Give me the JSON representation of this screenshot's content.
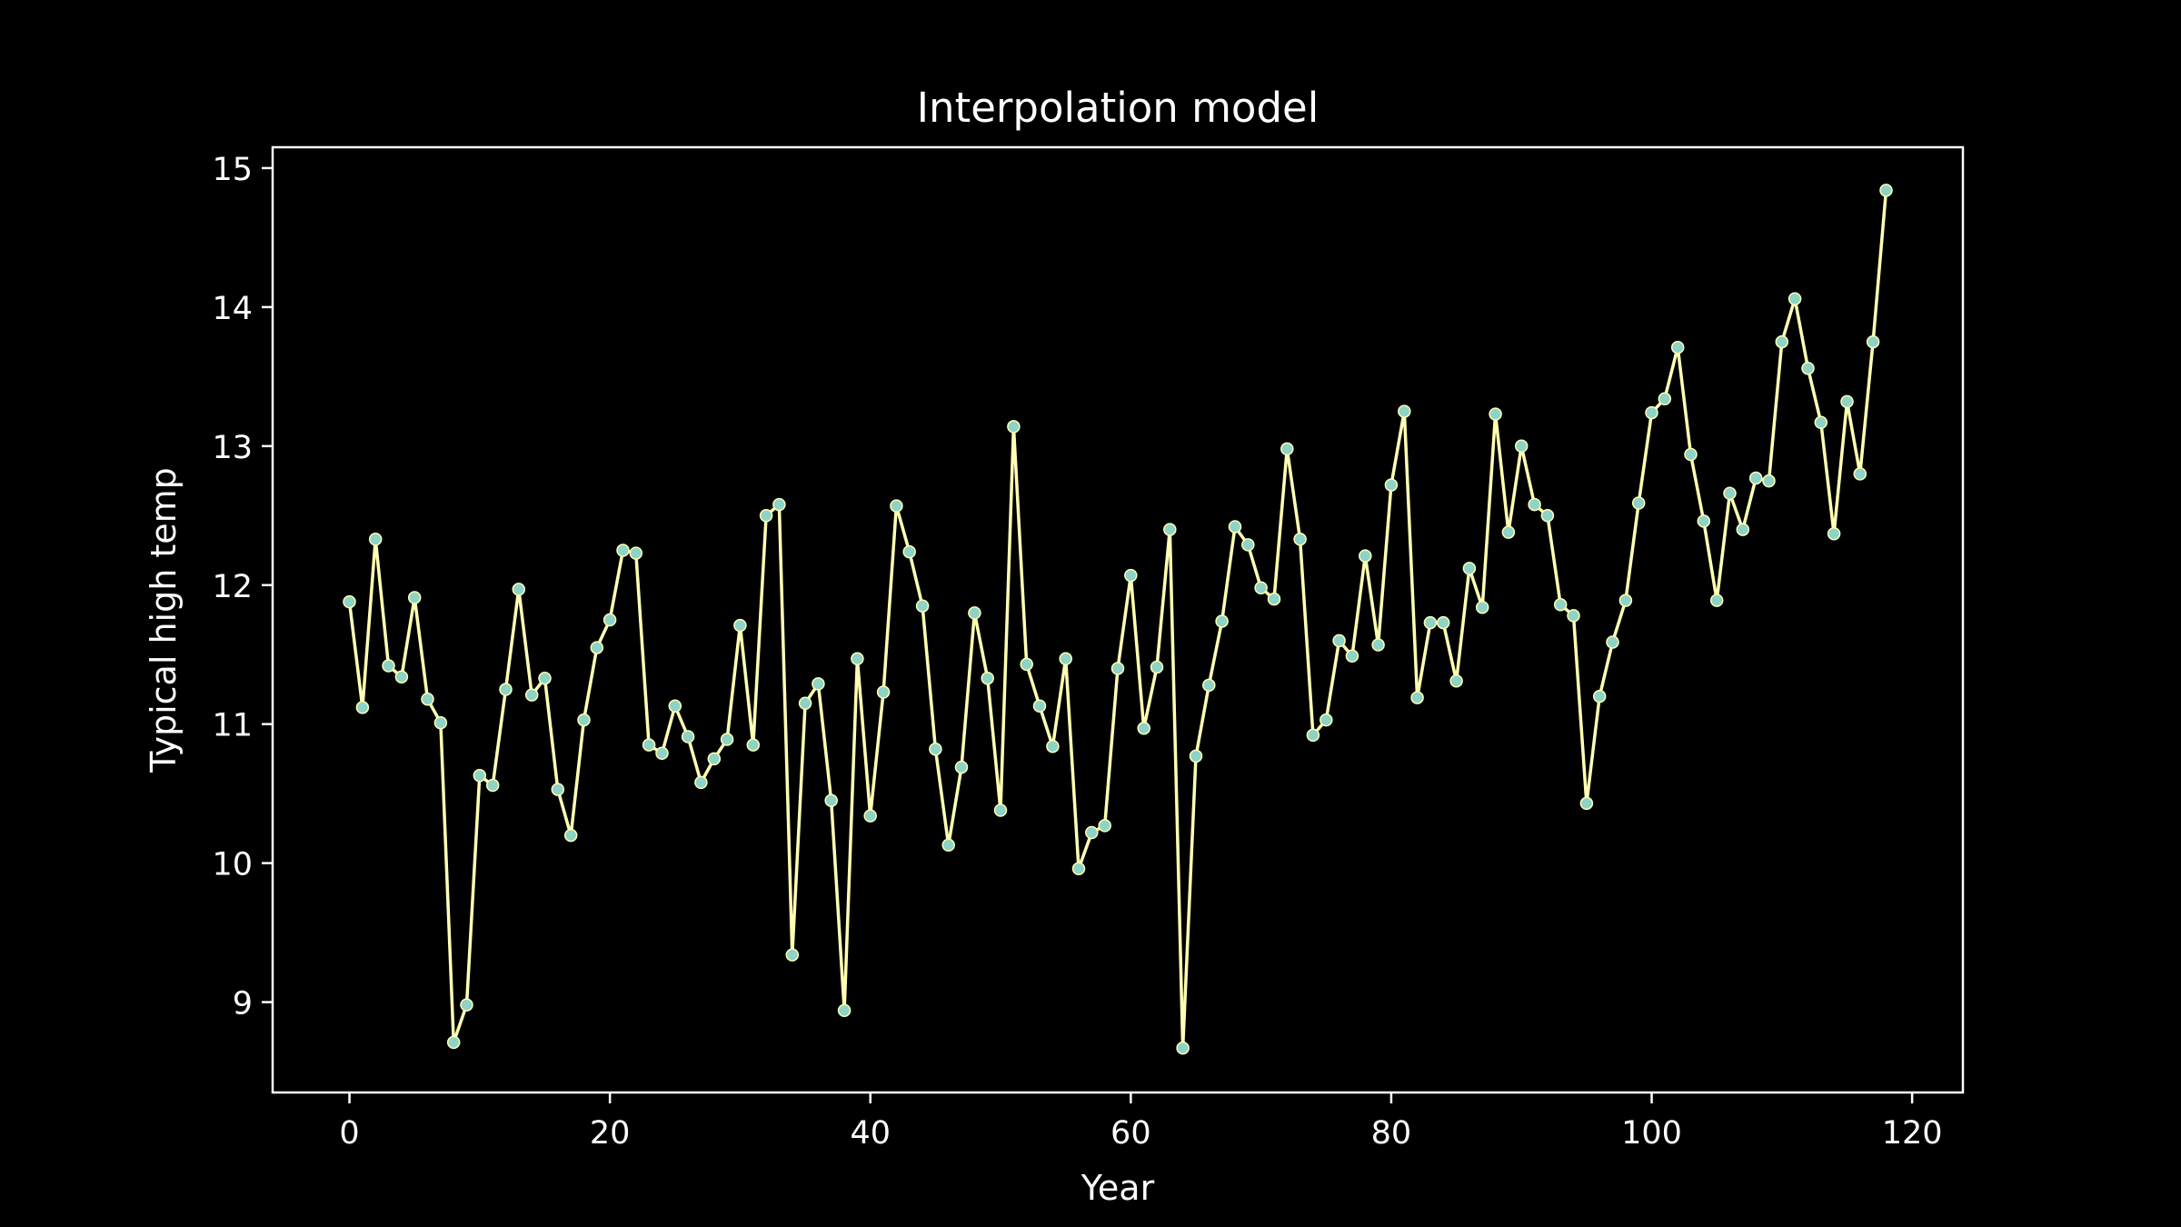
{
  "chart_data": {
    "type": "line",
    "title": "Interpolation model",
    "xlabel": "Year",
    "ylabel": "Typical high temp",
    "xlim": [
      -5.9,
      123.9
    ],
    "ylim": [
      8.35,
      15.15
    ],
    "x_ticks": [
      {
        "value": 0,
        "label": "0"
      },
      {
        "value": 20,
        "label": "20"
      },
      {
        "value": 40,
        "label": "40"
      },
      {
        "value": 60,
        "label": "60"
      },
      {
        "value": 80,
        "label": "80"
      },
      {
        "value": 100,
        "label": "100"
      },
      {
        "value": 120,
        "label": "120"
      }
    ],
    "y_ticks": [
      {
        "value": 9,
        "label": "9"
      },
      {
        "value": 10,
        "label": "10"
      },
      {
        "value": 11,
        "label": "11"
      },
      {
        "value": 12,
        "label": "12"
      },
      {
        "value": 13,
        "label": "13"
      },
      {
        "value": 14,
        "label": "14"
      },
      {
        "value": 15,
        "label": "15"
      }
    ],
    "grid": false,
    "colors": {
      "background": "#000000",
      "axes": "#ffffff",
      "text": "#ffffff",
      "line": "#ffffb3",
      "markers": "#8dd3c7"
    },
    "series": [
      {
        "x": [
          0,
          1,
          2,
          3,
          4,
          5,
          6,
          7,
          8,
          9,
          10,
          11,
          12,
          13,
          14,
          15,
          16,
          17,
          18,
          19,
          20,
          21,
          22,
          23,
          24,
          25,
          26,
          27,
          28,
          29,
          30,
          31,
          32,
          33,
          34,
          35,
          36,
          37,
          38,
          39,
          40,
          41,
          42,
          43,
          44,
          45,
          46,
          47,
          48,
          49,
          50,
          51,
          52,
          53,
          54,
          55,
          56,
          57,
          58,
          59,
          60,
          61,
          62,
          63,
          64,
          65,
          66,
          67,
          68,
          69,
          70,
          71,
          72,
          73,
          74,
          75,
          76,
          77,
          78,
          79,
          80,
          81,
          82,
          83,
          84,
          85,
          86,
          87,
          88,
          89,
          90,
          91,
          92,
          93,
          94,
          95,
          96,
          97,
          98,
          99,
          100,
          101,
          102,
          103,
          104,
          105,
          106,
          107,
          108,
          109,
          110,
          111,
          112,
          113,
          114,
          115,
          116,
          117,
          118
        ],
        "y": [
          11.88,
          11.12,
          12.33,
          11.42,
          11.34,
          11.91,
          11.18,
          11.01,
          8.71,
          8.98,
          10.63,
          10.56,
          11.25,
          11.97,
          11.21,
          11.33,
          10.53,
          10.2,
          11.03,
          11.55,
          11.75,
          12.25,
          12.23,
          10.85,
          10.79,
          11.13,
          10.91,
          10.58,
          10.75,
          10.89,
          11.71,
          10.85,
          12.5,
          12.58,
          9.34,
          11.15,
          11.29,
          10.45,
          8.94,
          11.47,
          10.34,
          11.23,
          12.57,
          12.24,
          11.85,
          10.82,
          10.13,
          10.69,
          11.8,
          11.33,
          10.38,
          13.14,
          11.43,
          11.13,
          10.84,
          11.47,
          9.96,
          10.22,
          10.27,
          11.4,
          12.07,
          10.97,
          11.41,
          12.4,
          8.67,
          10.77,
          11.28,
          11.74,
          12.42,
          12.29,
          11.98,
          11.9,
          12.98,
          12.33,
          10.92,
          11.03,
          11.6,
          11.49,
          12.21,
          11.57,
          12.72,
          13.25,
          11.19,
          11.73,
          11.73,
          11.31,
          12.12,
          11.84,
          13.23,
          12.38,
          13.0,
          12.58,
          12.5,
          11.86,
          11.78,
          10.43,
          11.2,
          11.59,
          11.89,
          12.59,
          13.24,
          13.34,
          13.71,
          12.94,
          12.46,
          11.89,
          12.66,
          12.4,
          12.77,
          12.75,
          13.75,
          14.06,
          13.56,
          13.17,
          12.37,
          13.32,
          12.8,
          13.75,
          14.84
        ]
      }
    ]
  }
}
